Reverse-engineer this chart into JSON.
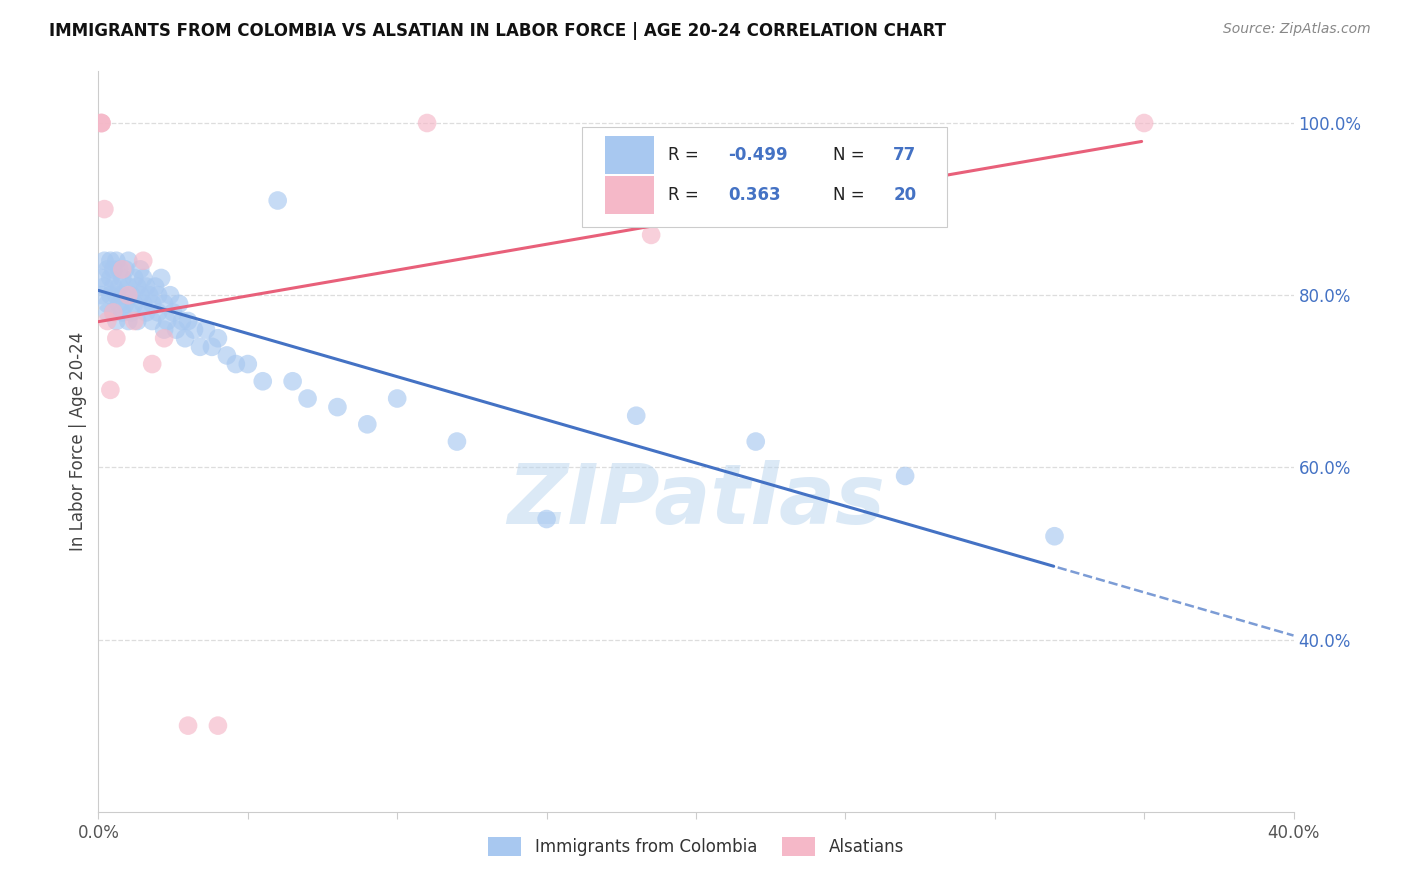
{
  "title": "IMMIGRANTS FROM COLOMBIA VS ALSATIAN IN LABOR FORCE | AGE 20-24 CORRELATION CHART",
  "source": "Source: ZipAtlas.com",
  "ylabel": "In Labor Force | Age 20-24",
  "xlim": [
    0.0,
    0.4
  ],
  "ylim": [
    0.2,
    1.06
  ],
  "blue_color": "#a8c8f0",
  "pink_color": "#f5b8c8",
  "blue_line_color": "#4472c4",
  "pink_line_color": "#e8607a",
  "colombia_R": -0.499,
  "colombia_N": 77,
  "alsatian_R": 0.363,
  "alsatian_N": 20,
  "legend_label_colombia": "Immigrants from Colombia",
  "legend_label_alsatian": "Alsatians",
  "colombia_x": [
    0.001,
    0.001,
    0.002,
    0.002,
    0.003,
    0.003,
    0.003,
    0.004,
    0.004,
    0.004,
    0.005,
    0.005,
    0.005,
    0.006,
    0.006,
    0.006,
    0.007,
    0.007,
    0.007,
    0.008,
    0.008,
    0.008,
    0.009,
    0.009,
    0.01,
    0.01,
    0.01,
    0.011,
    0.011,
    0.012,
    0.012,
    0.013,
    0.013,
    0.014,
    0.014,
    0.015,
    0.015,
    0.016,
    0.016,
    0.017,
    0.018,
    0.018,
    0.019,
    0.02,
    0.02,
    0.021,
    0.022,
    0.022,
    0.023,
    0.024,
    0.025,
    0.026,
    0.027,
    0.028,
    0.029,
    0.03,
    0.032,
    0.034,
    0.036,
    0.038,
    0.04,
    0.043,
    0.046,
    0.05,
    0.055,
    0.06,
    0.065,
    0.07,
    0.08,
    0.09,
    0.1,
    0.12,
    0.15,
    0.18,
    0.22,
    0.27,
    0.32
  ],
  "colombia_y": [
    0.82,
    0.8,
    0.84,
    0.81,
    0.79,
    0.83,
    0.78,
    0.82,
    0.8,
    0.84,
    0.78,
    0.83,
    0.81,
    0.8,
    0.77,
    0.84,
    0.79,
    0.83,
    0.81,
    0.78,
    0.82,
    0.8,
    0.79,
    0.83,
    0.77,
    0.81,
    0.84,
    0.8,
    0.78,
    0.82,
    0.79,
    0.81,
    0.77,
    0.83,
    0.8,
    0.79,
    0.82,
    0.78,
    0.81,
    0.8,
    0.77,
    0.79,
    0.81,
    0.8,
    0.78,
    0.82,
    0.76,
    0.79,
    0.77,
    0.8,
    0.78,
    0.76,
    0.79,
    0.77,
    0.75,
    0.77,
    0.76,
    0.74,
    0.76,
    0.74,
    0.75,
    0.73,
    0.72,
    0.72,
    0.7,
    0.91,
    0.7,
    0.68,
    0.67,
    0.65,
    0.68,
    0.63,
    0.54,
    0.66,
    0.63,
    0.59,
    0.52
  ],
  "alsatian_x": [
    0.001,
    0.001,
    0.001,
    0.002,
    0.003,
    0.004,
    0.005,
    0.006,
    0.008,
    0.01,
    0.012,
    0.015,
    0.018,
    0.022,
    0.03,
    0.04,
    0.11,
    0.185,
    0.27,
    0.35
  ],
  "alsatian_y": [
    1.0,
    1.0,
    1.0,
    0.9,
    0.77,
    0.69,
    0.78,
    0.75,
    0.83,
    0.8,
    0.77,
    0.84,
    0.72,
    0.75,
    0.3,
    0.3,
    1.0,
    0.87,
    0.97,
    1.0
  ],
  "watermark": "ZIPatlas",
  "watermark_color": "#b8d4ee",
  "grid_color": "#dddddd",
  "spine_color": "#cccccc",
  "right_tick_color": "#4472c4"
}
